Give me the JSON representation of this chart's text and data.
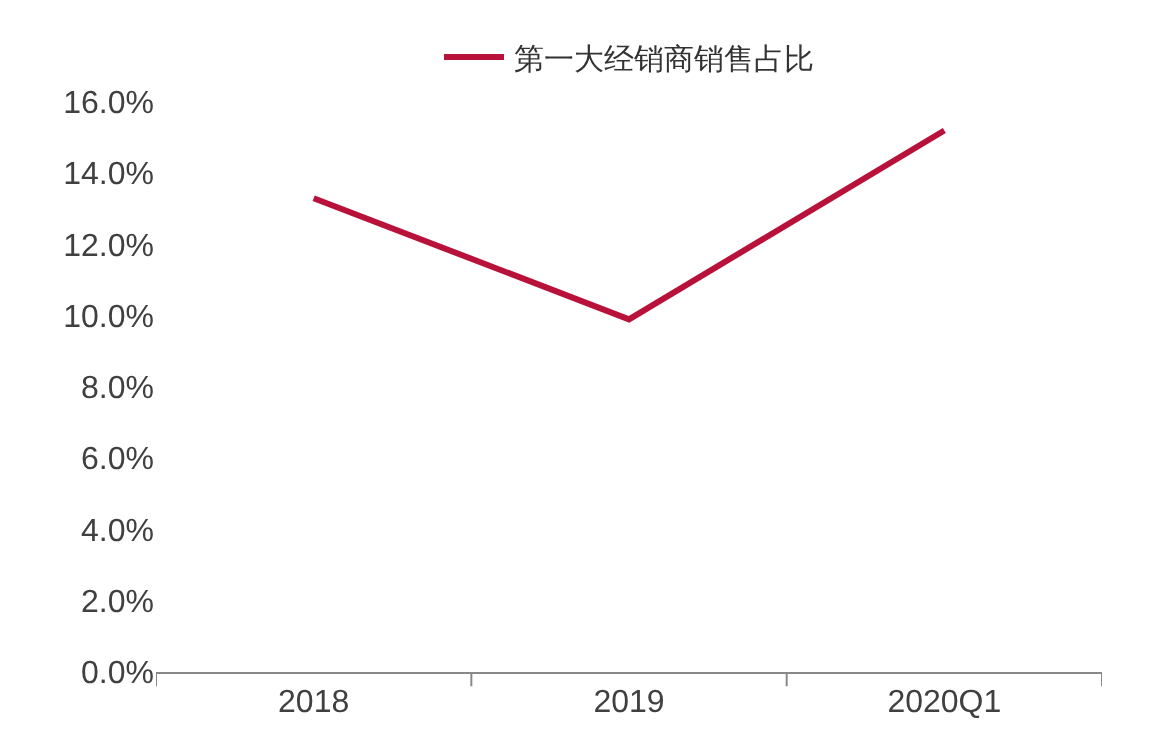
{
  "chart_data": {
    "type": "line",
    "categories": [
      "2018",
      "2019",
      "2020Q1"
    ],
    "series": [
      {
        "name": "第一大经销商销售占比",
        "color": "#b8123b",
        "values": [
          13.3,
          9.9,
          15.2
        ]
      }
    ],
    "ylim": [
      0,
      16
    ],
    "yticks": [
      {
        "value": 0,
        "label": "0.0%"
      },
      {
        "value": 2,
        "label": "2.0%"
      },
      {
        "value": 4,
        "label": "4.0%"
      },
      {
        "value": 6,
        "label": "6.0%"
      },
      {
        "value": 8,
        "label": "8.0%"
      },
      {
        "value": 10,
        "label": "10.0%"
      },
      {
        "value": 12,
        "label": "12.0%"
      },
      {
        "value": 14,
        "label": "14.0%"
      },
      {
        "value": 16,
        "label": "16.0%"
      }
    ],
    "grid": false,
    "legend": "top",
    "marker": "none",
    "line_style": "solid"
  }
}
